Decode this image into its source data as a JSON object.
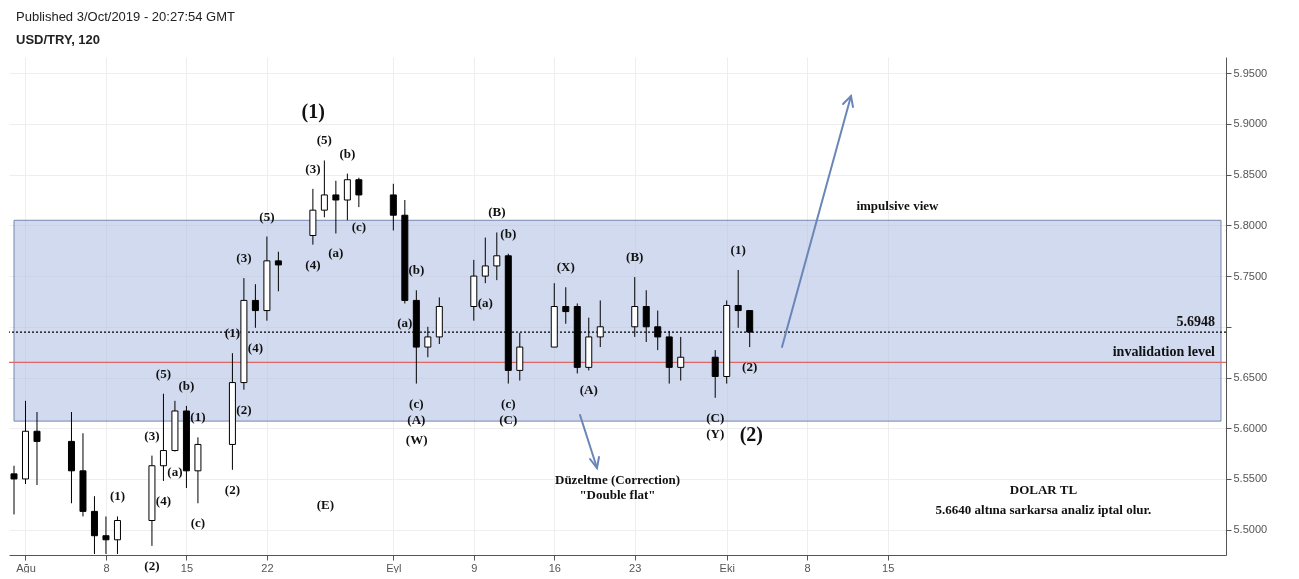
{
  "chart_data": {
    "type": "candlestick",
    "title": "USD/TRY, 120",
    "subtitle": "Published 3/Oct/2019 - 20:27:54 GMT",
    "x": [
      "2019-07-31",
      "2019-08-01",
      "2019-08-02",
      "2019-08-05",
      "2019-08-06",
      "2019-08-07",
      "2019-08-08",
      "2019-08-09",
      "2019-08-12",
      "2019-08-13",
      "2019-08-14",
      "2019-08-15",
      "2019-08-16",
      "2019-08-19",
      "2019-08-20",
      "2019-08-21",
      "2019-08-22",
      "2019-08-23",
      "2019-08-26",
      "2019-08-27",
      "2019-08-28",
      "2019-08-29",
      "2019-08-30",
      "2019-09-02",
      "2019-09-03",
      "2019-09-04",
      "2019-09-05",
      "2019-09-06",
      "2019-09-09",
      "2019-09-10",
      "2019-09-11",
      "2019-09-12",
      "2019-09-13",
      "2019-09-16",
      "2019-09-17",
      "2019-09-18",
      "2019-09-19",
      "2019-09-20",
      "2019-09-23",
      "2019-09-24",
      "2019-09-25",
      "2019-09-26",
      "2019-09-27",
      "2019-09-30",
      "2019-10-01",
      "2019-10-02",
      "2019-10-03"
    ],
    "ohlc": [
      [
        5.555,
        5.563,
        5.515,
        5.55
      ],
      [
        5.55,
        5.627,
        5.545,
        5.597
      ],
      [
        5.597,
        5.616,
        5.544,
        5.587
      ],
      [
        5.587,
        5.616,
        5.526,
        5.558
      ],
      [
        5.558,
        5.595,
        5.513,
        5.518
      ],
      [
        5.518,
        5.533,
        5.476,
        5.494
      ],
      [
        5.494,
        5.513,
        5.476,
        5.49
      ],
      [
        5.49,
        5.513,
        5.476,
        5.509
      ],
      [
        5.509,
        5.573,
        5.484,
        5.563
      ],
      [
        5.563,
        5.634,
        5.548,
        5.578
      ],
      [
        5.578,
        5.627,
        5.577,
        5.617
      ],
      [
        5.617,
        5.622,
        5.541,
        5.558
      ],
      [
        5.558,
        5.591,
        5.526,
        5.584
      ],
      [
        5.584,
        5.674,
        5.559,
        5.645
      ],
      [
        5.645,
        5.748,
        5.638,
        5.726
      ],
      [
        5.726,
        5.742,
        5.699,
        5.716
      ],
      [
        5.716,
        5.789,
        5.706,
        5.765
      ],
      [
        5.765,
        5.774,
        5.735,
        5.761
      ],
      [
        5.79,
        5.836,
        5.781,
        5.815
      ],
      [
        5.815,
        5.864,
        5.808,
        5.83
      ],
      [
        5.83,
        5.844,
        5.792,
        5.825
      ],
      [
        5.825,
        5.851,
        5.805,
        5.845
      ],
      [
        5.845,
        5.847,
        5.818,
        5.83
      ],
      [
        5.83,
        5.841,
        5.795,
        5.81
      ],
      [
        5.81,
        5.825,
        5.723,
        5.726
      ],
      [
        5.726,
        5.736,
        5.644,
        5.68
      ],
      [
        5.68,
        5.7,
        5.67,
        5.69
      ],
      [
        5.69,
        5.729,
        5.683,
        5.72
      ],
      [
        5.72,
        5.766,
        5.706,
        5.75
      ],
      [
        5.75,
        5.788,
        5.743,
        5.76
      ],
      [
        5.76,
        5.793,
        5.746,
        5.77
      ],
      [
        5.77,
        5.772,
        5.644,
        5.657
      ],
      [
        5.657,
        5.694,
        5.647,
        5.68
      ],
      [
        5.68,
        5.743,
        5.68,
        5.72
      ],
      [
        5.72,
        5.739,
        5.703,
        5.715
      ],
      [
        5.72,
        5.723,
        5.654,
        5.66
      ],
      [
        5.66,
        5.709,
        5.657,
        5.69
      ],
      [
        5.69,
        5.726,
        5.68,
        5.7
      ],
      [
        5.7,
        5.749,
        5.69,
        5.72
      ],
      [
        5.72,
        5.736,
        5.685,
        5.7
      ],
      [
        5.7,
        5.716,
        5.677,
        5.69
      ],
      [
        5.69,
        5.696,
        5.644,
        5.66
      ],
      [
        5.66,
        5.69,
        5.647,
        5.67
      ],
      [
        5.67,
        5.677,
        5.63,
        5.651
      ],
      [
        5.651,
        5.726,
        5.644,
        5.721
      ],
      [
        5.721,
        5.756,
        5.699,
        5.716
      ],
      [
        5.716,
        5.716,
        5.68,
        5.6948
      ]
    ],
    "xlim": [
      "2019-07-31",
      "2019-11-13"
    ],
    "xticks": [
      {
        "value": "2019-08-01",
        "label": "Ağu"
      },
      {
        "value": "2019-08-08",
        "label": "8"
      },
      {
        "value": "2019-08-15",
        "label": "15"
      },
      {
        "value": "2019-08-22",
        "label": "22"
      },
      {
        "value": "2019-09-02",
        "label": "Eyl"
      },
      {
        "value": "2019-09-09",
        "label": "9"
      },
      {
        "value": "2019-09-16",
        "label": "16"
      },
      {
        "value": "2019-09-23",
        "label": "23"
      },
      {
        "value": "2019-10-01",
        "label": "Eki"
      },
      {
        "value": "2019-10-08",
        "label": "8"
      },
      {
        "value": "2019-10-15",
        "label": "15"
      }
    ],
    "ylim": [
      5.475,
      5.966
    ],
    "yticks": [
      {
        "value": 5.5,
        "label": "5.5000"
      },
      {
        "value": 5.55,
        "label": "5.5500"
      },
      {
        "value": 5.6,
        "label": "5.6000"
      },
      {
        "value": 5.65,
        "label": "5.6500"
      },
      {
        "value": 5.7,
        "label": null
      },
      {
        "value": 5.75,
        "label": "5.7500"
      },
      {
        "value": 5.8,
        "label": "5.8000"
      },
      {
        "value": 5.85,
        "label": "5.8500"
      },
      {
        "value": 5.9,
        "label": "5.9000"
      },
      {
        "value": 5.95,
        "label": "5.9500"
      }
    ],
    "grid": true,
    "ref_lines": [
      {
        "axis": "y",
        "value": 5.6948,
        "label": "5.6948",
        "line_style": "dotted",
        "color": "#000000"
      },
      {
        "axis": "y",
        "value": 5.665,
        "label": "invalidation level",
        "color": "#e06666"
      }
    ],
    "bands": [
      {
        "axis": "y",
        "from": 5.607,
        "to": 5.805,
        "color": "#b4c3e4"
      }
    ],
    "annotations": [
      "(1)",
      "(2)",
      "(E)",
      "impulsive view",
      "Düzeltme (Correction)",
      "\"Double flat\"",
      "DOLAR TL",
      "5.6640 altına sarkarsa analiz iptal olur.",
      "(W)",
      {
        "text": "(1)",
        "x": "2019-08-09",
        "y": 5.513
      },
      {
        "text": "(2)",
        "x": "2019-08-12",
        "y": 5.484
      },
      {
        "text": "(3)",
        "x": "2019-08-12",
        "y": 5.573
      },
      {
        "text": "(4)",
        "x": "2019-08-13",
        "y": 5.548
      },
      {
        "text": "(5)",
        "x": "2019-08-13",
        "y": 5.634
      },
      {
        "text": "(1)",
        "x": "2019-08-16",
        "y": 5.591
      },
      {
        "text": "(2)",
        "x": "2019-08-19",
        "y": 5.559
      },
      {
        "text": "(3)",
        "x": "2019-08-26",
        "y": 5.836
      },
      {
        "text": "(5)",
        "x": "2019-08-27",
        "y": 5.864
      },
      {
        "text": "(4)",
        "x": "2019-08-26",
        "y": 5.781
      },
      {
        "text": "(1)",
        "x": "2019-10-02",
        "y": 5.756
      },
      {
        "text": "(2)",
        "x": "2019-10-03",
        "y": 5.68
      },
      {
        "text": "(a)",
        "x": "2019-08-14",
        "y": 5.577
      },
      {
        "text": "(b)",
        "x": "2019-08-15",
        "y": 5.622
      },
      {
        "text": "(c)",
        "x": "2019-08-16",
        "y": 5.526
      },
      {
        "text": "(a)",
        "x": "2019-08-28",
        "y": 5.792
      },
      {
        "text": "(b)",
        "x": "2019-08-29",
        "y": 5.851
      },
      {
        "text": "(c)",
        "x": "2019-08-30",
        "y": 5.818
      },
      {
        "text": "(a)",
        "x": "2019-09-03",
        "y": 5.723
      },
      {
        "text": "(b)",
        "x": "2019-09-04",
        "y": 5.736
      },
      {
        "text": "(c)",
        "x": "2019-09-04",
        "y": 5.644
      },
      {
        "text": "(a)",
        "x": "2019-09-10",
        "y": 5.743
      },
      {
        "text": "(b)",
        "x": "2019-09-12",
        "y": 5.772
      },
      {
        "text": "(c)",
        "x": "2019-09-12",
        "y": 5.644
      },
      {
        "text": "(1)",
        "x": "2019-08-19",
        "y": 5.674
      },
      {
        "text": "(2)",
        "x": "2019-08-20",
        "y": 5.638
      },
      {
        "text": "(3)",
        "x": "2019-08-20",
        "y": 5.748
      },
      {
        "text": "(4)",
        "x": "2019-08-21",
        "y": 5.699
      },
      {
        "text": "(5)",
        "x": "2019-08-22",
        "y": 5.789
      },
      {
        "text": "(A)",
        "x": "2019-09-04",
        "y": 5.644
      },
      {
        "text": "(B)",
        "x": "2019-09-11",
        "y": 5.793
      },
      {
        "text": "(C)",
        "x": "2019-09-12",
        "y": 5.644
      },
      {
        "text": "(A)",
        "x": "2019-09-19",
        "y": 5.657
      },
      {
        "text": "(B)",
        "x": "2019-09-23",
        "y": 5.749
      },
      {
        "text": "(C)",
        "x": "2019-09-30",
        "y": 5.63
      },
      {
        "text": "(X)",
        "x": "2019-09-17",
        "y": 5.739
      },
      {
        "text": "(Y)",
        "x": "2019-09-30",
        "y": 5.63
      }
    ]
  }
}
